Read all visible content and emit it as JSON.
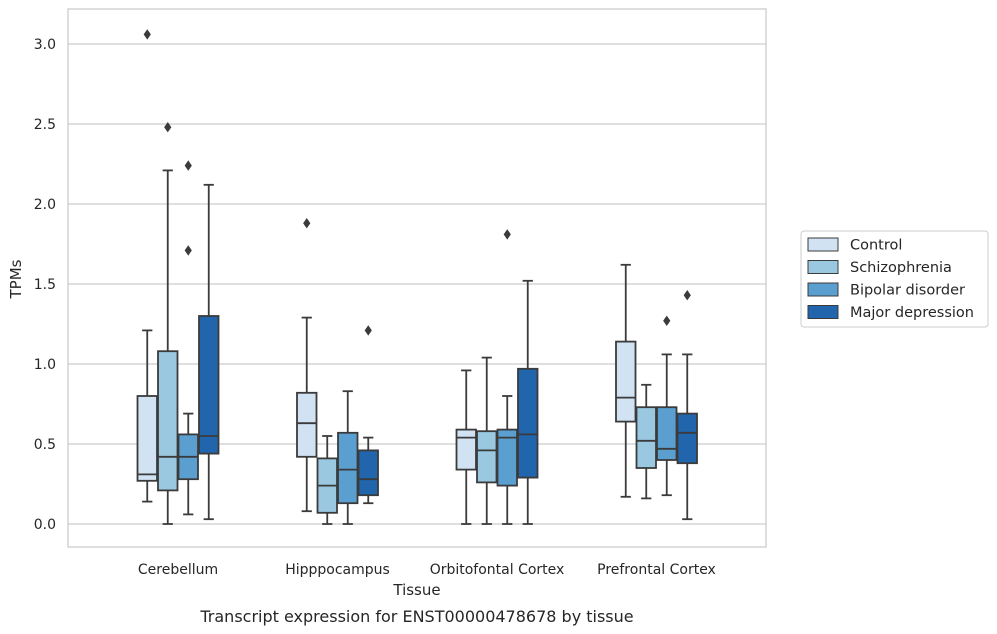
{
  "chart_data": {
    "type": "box",
    "xlabel": "Tissue",
    "ylabel": "TPMs",
    "caption": "Transcript expression for ENST00000478678 by tissue",
    "ylim": [
      -0.15,
      3.22
    ],
    "yticks": [
      "0.0",
      "0.5",
      "1.0",
      "1.5",
      "2.0",
      "2.5",
      "3.0"
    ],
    "grid": "horizontal",
    "legend_position": "right",
    "categories": [
      "Cerebellum",
      "Hipppocampus",
      "Orbitofontal Cortex",
      "Prefrontal Cortex"
    ],
    "series": [
      {
        "name": "Control",
        "color": "#d1e2f2",
        "boxes": [
          {
            "whisker_low": 0.14,
            "q1": 0.27,
            "median": 0.31,
            "q3": 0.8,
            "whisker_high": 1.21,
            "outliers": [
              3.06
            ]
          },
          {
            "whisker_low": 0.08,
            "q1": 0.42,
            "median": 0.63,
            "q3": 0.82,
            "whisker_high": 1.29,
            "outliers": [
              1.88
            ]
          },
          {
            "whisker_low": 0.0,
            "q1": 0.34,
            "median": 0.54,
            "q3": 0.59,
            "whisker_high": 0.96,
            "outliers": []
          },
          {
            "whisker_low": 0.17,
            "q1": 0.64,
            "median": 0.79,
            "q3": 1.14,
            "whisker_high": 1.62,
            "outliers": []
          }
        ]
      },
      {
        "name": "Schizophrenia",
        "color": "#9ac8e0",
        "boxes": [
          {
            "whisker_low": 0.0,
            "q1": 0.21,
            "median": 0.42,
            "q3": 1.08,
            "whisker_high": 2.21,
            "outliers": [
              2.48
            ]
          },
          {
            "whisker_low": 0.0,
            "q1": 0.07,
            "median": 0.24,
            "q3": 0.41,
            "whisker_high": 0.55,
            "outliers": []
          },
          {
            "whisker_low": 0.0,
            "q1": 0.26,
            "median": 0.46,
            "q3": 0.58,
            "whisker_high": 1.04,
            "outliers": []
          },
          {
            "whisker_low": 0.16,
            "q1": 0.35,
            "median": 0.52,
            "q3": 0.73,
            "whisker_high": 0.87,
            "outliers": []
          }
        ]
      },
      {
        "name": "Bipolar disorder",
        "color": "#5a9fcf",
        "boxes": [
          {
            "whisker_low": 0.06,
            "q1": 0.28,
            "median": 0.42,
            "q3": 0.56,
            "whisker_high": 0.69,
            "outliers": [
              2.24,
              1.71
            ]
          },
          {
            "whisker_low": 0.0,
            "q1": 0.13,
            "median": 0.34,
            "q3": 0.57,
            "whisker_high": 0.83,
            "outliers": []
          },
          {
            "whisker_low": 0.0,
            "q1": 0.24,
            "median": 0.54,
            "q3": 0.59,
            "whisker_high": 0.8,
            "outliers": [
              1.81
            ]
          },
          {
            "whisker_low": 0.18,
            "q1": 0.4,
            "median": 0.47,
            "q3": 0.73,
            "whisker_high": 1.06,
            "outliers": [
              1.27
            ]
          }
        ]
      },
      {
        "name": "Major depression",
        "color": "#2166ac",
        "boxes": [
          {
            "whisker_low": 0.03,
            "q1": 0.44,
            "median": 0.55,
            "q3": 1.3,
            "whisker_high": 2.12,
            "outliers": []
          },
          {
            "whisker_low": 0.13,
            "q1": 0.18,
            "median": 0.28,
            "q3": 0.46,
            "whisker_high": 0.54,
            "outliers": [
              1.21
            ]
          },
          {
            "whisker_low": 0.0,
            "q1": 0.29,
            "median": 0.56,
            "q3": 0.97,
            "whisker_high": 1.52,
            "outliers": []
          },
          {
            "whisker_low": 0.03,
            "q1": 0.38,
            "median": 0.57,
            "q3": 0.69,
            "whisker_high": 1.06,
            "outliers": [
              1.43
            ]
          }
        ]
      }
    ]
  }
}
